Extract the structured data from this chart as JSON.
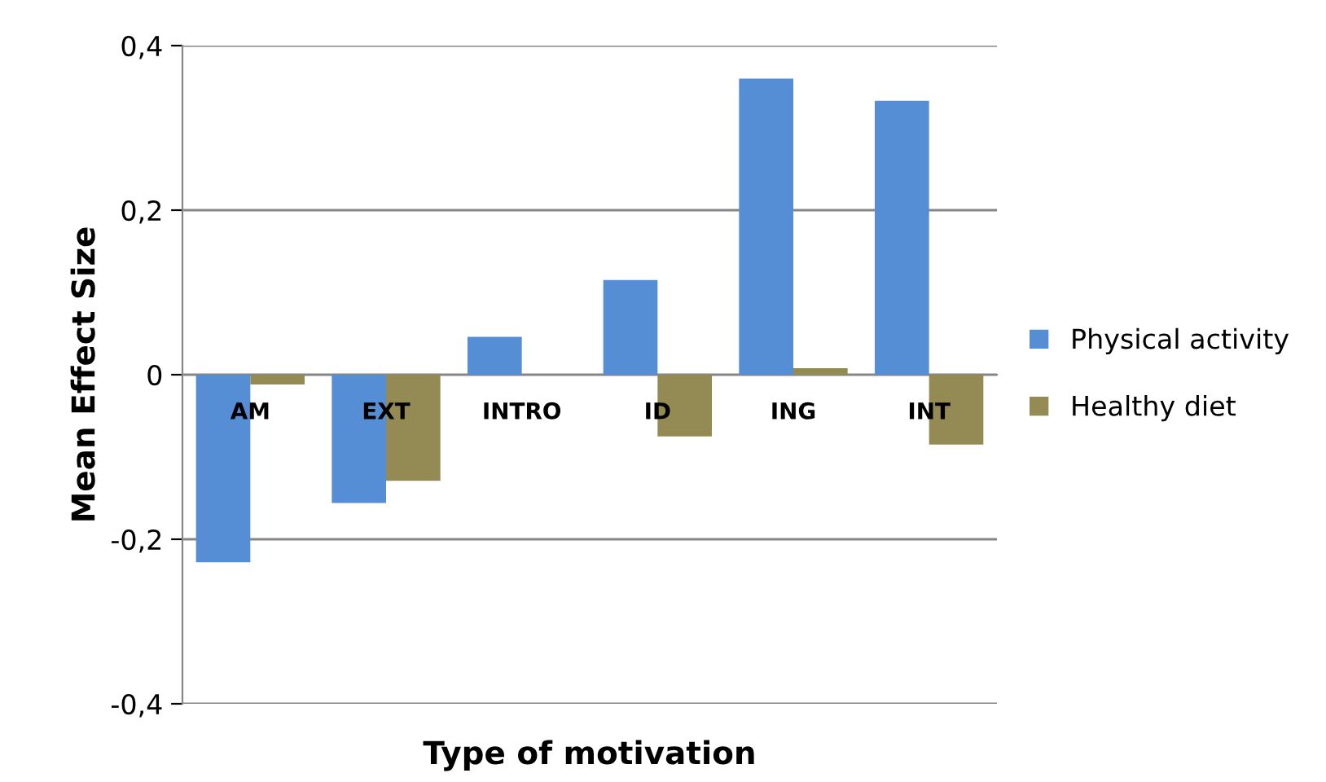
{
  "chart_data": {
    "type": "bar",
    "xlabel": "Type of motivation",
    "ylabel": "Mean Effect Size",
    "categories": [
      "AM",
      "EXT",
      "INTRO",
      "ID",
      "ING",
      "INT"
    ],
    "series": [
      {
        "name": "Physical activity",
        "color": "#558ed5",
        "values": [
          -0.228,
          -0.156,
          0.046,
          0.115,
          0.36,
          0.333
        ]
      },
      {
        "name": "Healthy diet",
        "color": "#948a54",
        "values": [
          -0.012,
          -0.129,
          0,
          -0.075,
          0.008,
          -0.085
        ]
      }
    ],
    "ylim": [
      -0.4,
      0.4
    ],
    "yticks": [
      {
        "value": -0.4,
        "label": "-0,4"
      },
      {
        "value": -0.2,
        "label": "-0,2"
      },
      {
        "value": 0,
        "label": "0"
      },
      {
        "value": 0.2,
        "label": "0,2"
      },
      {
        "value": 0.4,
        "label": "0,4"
      }
    ],
    "grid": "y",
    "legend": "right"
  }
}
